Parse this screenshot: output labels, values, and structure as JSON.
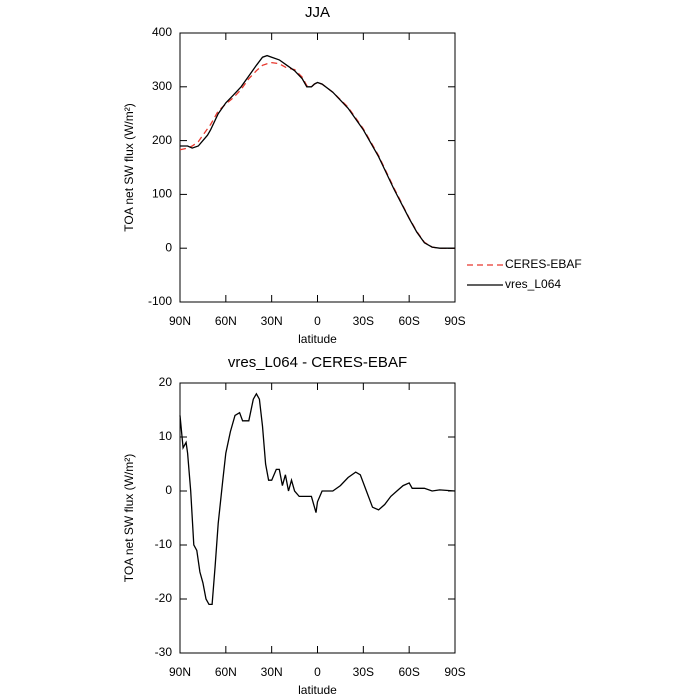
{
  "chart_data": [
    {
      "type": "line",
      "title": "JJA",
      "x_label": "latitude",
      "y_label": "TOA net SW flux (W/m²)",
      "x": [
        90,
        85,
        82,
        78,
        75,
        72,
        70,
        65,
        60,
        55,
        50,
        45,
        40,
        36,
        33,
        30,
        25,
        20,
        15,
        10,
        7,
        4,
        2,
        0,
        -3,
        -10,
        -20,
        -30,
        -40,
        -50,
        -60,
        -65,
        -70,
        -75,
        -80,
        -85,
        -90
      ],
      "series": [
        {
          "name": "CERES-EBAF",
          "color": "#e8382e",
          "dash": true,
          "values": [
            183,
            186,
            190,
            198,
            210,
            222,
            230,
            255,
            268,
            280,
            295,
            315,
            330,
            340,
            343,
            345,
            343,
            335,
            332,
            318,
            302,
            300,
            305,
            308,
            305,
            290,
            262,
            222,
            172,
            112,
            56,
            31,
            11,
            2,
            0,
            0,
            0
          ]
        },
        {
          "name": "vres_L064",
          "color": "#000000",
          "dash": false,
          "values": [
            190,
            190,
            186,
            190,
            200,
            210,
            220,
            250,
            270,
            285,
            300,
            320,
            340,
            355,
            358,
            355,
            350,
            340,
            330,
            315,
            300,
            300,
            305,
            308,
            305,
            290,
            260,
            220,
            170,
            110,
            55,
            30,
            10,
            2,
            0,
            0,
            0
          ]
        }
      ],
      "xlim": [
        90,
        -90
      ],
      "xticks": [
        {
          "value": 90,
          "label": "90N"
        },
        {
          "value": 60,
          "label": "60N"
        },
        {
          "value": 30,
          "label": "30N"
        },
        0,
        {
          "value": -30,
          "label": "30S"
        },
        {
          "value": -60,
          "label": "60S"
        },
        {
          "value": -90,
          "label": "90S"
        }
      ],
      "ylim": [
        -100,
        400
      ],
      "yticks": [
        -100,
        0,
        100,
        200,
        300,
        400
      ],
      "legend": "right"
    },
    {
      "type": "line",
      "title": "vres_L064 - CERES-EBAF",
      "x_label": "latitude",
      "y_label": "TOA net SW flux (W/m²)",
      "x": [
        90,
        88,
        86,
        85,
        83,
        81,
        79,
        77,
        75,
        73,
        71,
        69,
        67,
        65,
        62,
        60,
        57,
        54,
        51,
        49,
        47,
        45,
        42,
        40,
        38,
        36,
        34,
        32,
        30,
        27,
        25,
        23,
        21,
        19,
        17,
        15,
        12,
        8,
        4,
        1,
        0,
        -3,
        -10,
        -15,
        -20,
        -25,
        -28,
        -32,
        -36,
        -40,
        -44,
        -48,
        -52,
        -56,
        -60,
        -62,
        -65,
        -70,
        -75,
        -80,
        -90
      ],
      "values": [
        14,
        8,
        9,
        7,
        0,
        -10,
        -11,
        -15,
        -17,
        -20,
        -21,
        -21,
        -14,
        -6,
        2,
        7,
        11,
        14,
        14.5,
        13,
        13,
        13,
        17,
        18,
        17,
        12,
        5,
        2,
        2,
        4,
        4,
        1,
        3,
        0,
        2,
        0,
        -1,
        -1,
        -1,
        -4,
        -2,
        0,
        0,
        1,
        2.5,
        3.5,
        3,
        0,
        -3,
        -3.5,
        -2.5,
        -1,
        0,
        1,
        1.5,
        0.5,
        0.5,
        0.5,
        0,
        0.2,
        0
      ],
      "color": "#000000",
      "xlim": [
        90,
        -90
      ],
      "xticks": [
        {
          "value": 90,
          "label": "90N"
        },
        {
          "value": 60,
          "label": "60N"
        },
        {
          "value": 30,
          "label": "30N"
        },
        0,
        {
          "value": -30,
          "label": "30S"
        },
        {
          "value": -60,
          "label": "60S"
        },
        {
          "value": -90,
          "label": "90S"
        }
      ],
      "ylim": [
        -30,
        20
      ],
      "yticks": [
        -30,
        -20,
        -10,
        0,
        10,
        20
      ]
    }
  ]
}
